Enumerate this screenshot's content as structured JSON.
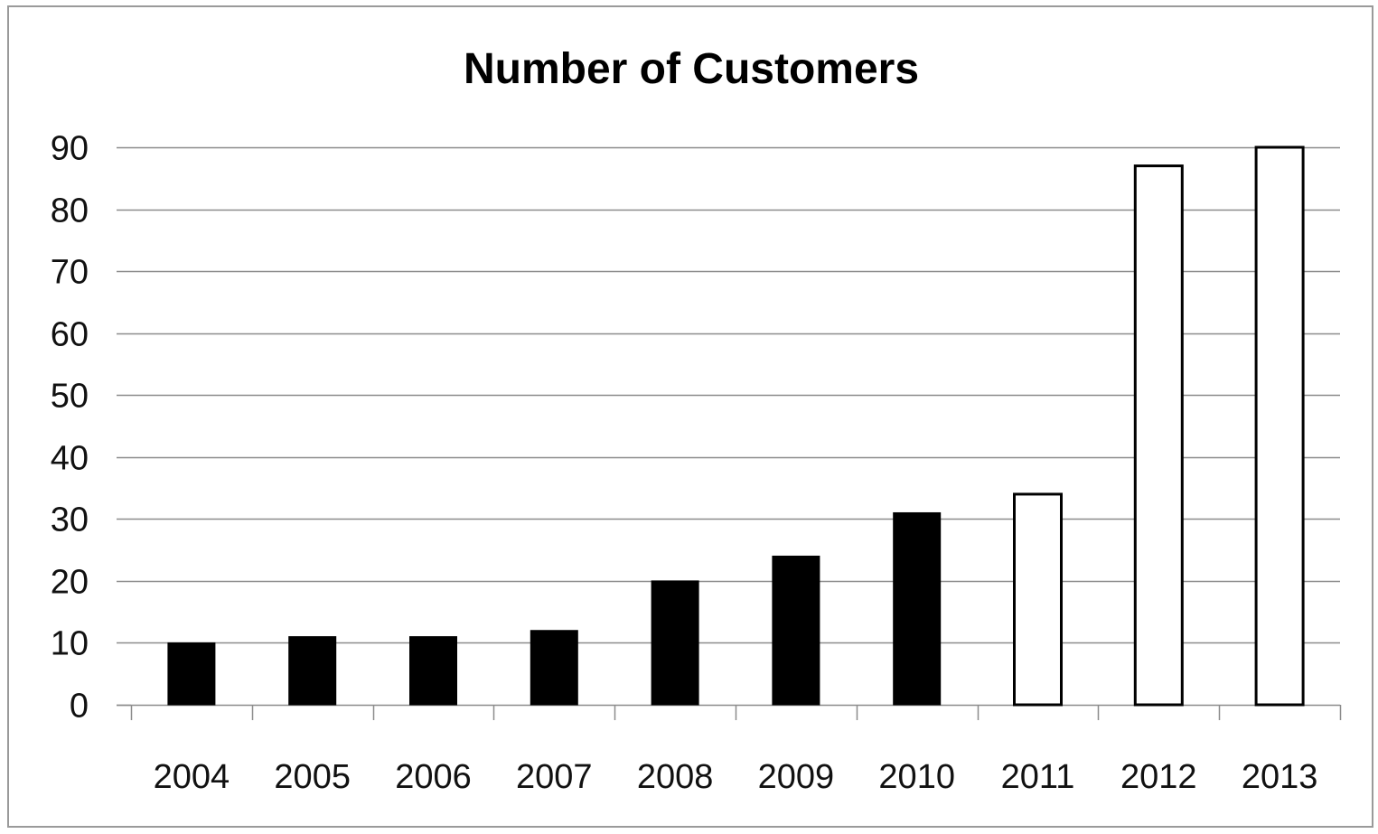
{
  "chart_data": {
    "type": "bar",
    "title": "Number of Customers",
    "xlabel": "",
    "ylabel": "",
    "categories": [
      "2004",
      "2005",
      "2006",
      "2007",
      "2008",
      "2009",
      "2010",
      "2011",
      "2012",
      "2013"
    ],
    "values": [
      10,
      11,
      11,
      12,
      20,
      24,
      31,
      34,
      87,
      90
    ],
    "bar_fill": [
      "#000000",
      "#000000",
      "#000000",
      "#000000",
      "#000000",
      "#000000",
      "#000000",
      "#ffffff",
      "#ffffff",
      "#ffffff"
    ],
    "bar_outline": "#000000",
    "ylim": [
      0,
      90
    ],
    "yticks": [
      0,
      10,
      20,
      30,
      40,
      50,
      60,
      70,
      80,
      90
    ],
    "grid": true,
    "legend": "none"
  }
}
